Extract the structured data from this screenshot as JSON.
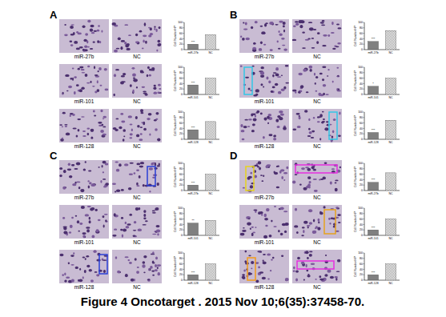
{
  "caption": "Figure 4 Oncotarget . 2015 Nov 10;6(35):37458-70.",
  "panels": [
    {
      "letter": "A",
      "rows": [
        {
          "labels": [
            "miR-27b",
            "NC"
          ]
        },
        {
          "labels": [
            "miR-101",
            "NC"
          ]
        },
        {
          "labels": [
            "miR-128",
            "NC"
          ]
        }
      ]
    },
    {
      "letter": "B",
      "rows": [
        {
          "labels": [
            "miR-27b",
            "NC"
          ]
        },
        {
          "labels": [
            "miR-101",
            "NC"
          ]
        },
        {
          "labels": [
            "miR-128",
            "NC"
          ]
        }
      ]
    },
    {
      "letter": "C",
      "rows": [
        {
          "labels": [
            "miR-27b",
            "NC"
          ]
        },
        {
          "labels": [
            "miR-101",
            "NC"
          ]
        },
        {
          "labels": [
            "miR-128",
            "NC"
          ]
        }
      ]
    },
    {
      "letter": "D",
      "rows": [
        {
          "labels": [
            "miR-27b",
            "NC"
          ]
        },
        {
          "labels": [
            "miR-101",
            "NC"
          ]
        },
        {
          "labels": [
            "miR-128",
            "NC"
          ]
        }
      ]
    }
  ],
  "chart_data": [
    {
      "type": "bar",
      "y_label": "Cell Number/HP",
      "categories": [
        "miR-27b",
        "NC"
      ],
      "values": [
        20,
        55
      ],
      "colors": [
        "#808080",
        "#9a9a9a"
      ],
      "ylim": [
        0,
        100
      ],
      "yticks": [
        0,
        20,
        40,
        60,
        80,
        100
      ],
      "annotations": [
        "***"
      ]
    },
    {
      "type": "bar",
      "y_label": "Cell Number/HP",
      "categories": [
        "miR-101",
        "NC"
      ],
      "values": [
        35,
        60
      ],
      "colors": [
        "#808080",
        "#9a9a9a"
      ],
      "ylim": [
        0,
        100
      ],
      "yticks": [
        0,
        20,
        40,
        60,
        80,
        100
      ],
      "annotations": [
        "***"
      ]
    },
    {
      "type": "bar",
      "y_label": "Cell Number/HP",
      "categories": [
        "miR-128",
        "NC"
      ],
      "values": [
        35,
        65
      ],
      "colors": [
        "#808080",
        "#9a9a9a"
      ],
      "ylim": [
        0,
        100
      ],
      "yticks": [
        0,
        20,
        40,
        60,
        80,
        100
      ],
      "annotations": [
        "***"
      ]
    },
    {
      "type": "bar",
      "y_label": "Cell Number/HP",
      "categories": [
        "miR-27b",
        "NC"
      ],
      "values": [
        30,
        70
      ],
      "colors": [
        "#808080",
        "#9a9a9a"
      ],
      "ylim": [
        0,
        100
      ],
      "yticks": [
        0,
        20,
        40,
        60,
        80,
        100
      ],
      "annotations": [
        "***"
      ]
    },
    {
      "type": "bar",
      "y_label": "Cell Number/HP",
      "categories": [
        "miR-101",
        "NC"
      ],
      "values": [
        30,
        60
      ],
      "colors": [
        "#808080",
        "#9a9a9a"
      ],
      "ylim": [
        0,
        100
      ],
      "yticks": [
        0,
        20,
        40,
        60,
        80,
        100
      ],
      "annotations": [
        "*"
      ]
    },
    {
      "type": "bar",
      "y_label": "Cell Number/HP",
      "categories": [
        "miR-128",
        "NC"
      ],
      "values": [
        25,
        70
      ],
      "colors": [
        "#808080",
        "#9a9a9a"
      ],
      "ylim": [
        0,
        100
      ],
      "yticks": [
        0,
        20,
        40,
        60,
        80,
        100
      ],
      "annotations": [
        "***"
      ]
    },
    {
      "type": "bar",
      "y_label": "Cell Number/HP",
      "categories": [
        "miR-27b",
        "NC"
      ],
      "values": [
        20,
        60
      ],
      "colors": [
        "#808080",
        "#9a9a9a"
      ],
      "ylim": [
        0,
        100
      ],
      "yticks": [
        0,
        20,
        40,
        60,
        80,
        100
      ],
      "annotations": [
        "***"
      ]
    },
    {
      "type": "bar",
      "y_label": "Cell Number/HP",
      "categories": [
        "miR-101",
        "NC"
      ],
      "values": [
        45,
        55
      ],
      "colors": [
        "#808080",
        "#9a9a9a"
      ],
      "ylim": [
        0,
        100
      ],
      "yticks": [
        0,
        20,
        40,
        60,
        80,
        100
      ],
      "annotations": [
        "**"
      ]
    },
    {
      "type": "bar",
      "y_label": "Cell Number/HP",
      "categories": [
        "miR-128",
        "NC"
      ],
      "values": [
        20,
        60
      ],
      "colors": [
        "#808080",
        "#9a9a9a"
      ],
      "ylim": [
        0,
        100
      ],
      "yticks": [
        0,
        20,
        40,
        60,
        80,
        100
      ],
      "annotations": [
        "***"
      ]
    },
    {
      "type": "bar",
      "y_label": "Cell Number/HP",
      "categories": [
        "miR-27b",
        "NC"
      ],
      "values": [
        30,
        65
      ],
      "colors": [
        "#808080",
        "#9a9a9a"
      ],
      "ylim": [
        0,
        100
      ],
      "yticks": [
        0,
        20,
        40,
        60,
        80,
        100
      ],
      "annotations": [
        "***"
      ]
    },
    {
      "type": "bar",
      "y_label": "Cell Number/HP",
      "categories": [
        "miR-101",
        "NC"
      ],
      "values": [
        20,
        60
      ],
      "colors": [
        "#808080",
        "#9a9a9a"
      ],
      "ylim": [
        0,
        100
      ],
      "yticks": [
        0,
        20,
        40,
        60,
        80,
        100
      ],
      "annotations": [
        "***"
      ]
    },
    {
      "type": "bar",
      "y_label": "Cell Number/HP",
      "categories": [
        "miR-128",
        "NC"
      ],
      "values": [
        20,
        60
      ],
      "colors": [
        "#808080",
        "#9a9a9a"
      ],
      "ylim": [
        0,
        100
      ],
      "yticks": [
        0,
        20,
        40,
        60,
        80,
        100
      ],
      "annotations": [
        "***"
      ]
    }
  ]
}
